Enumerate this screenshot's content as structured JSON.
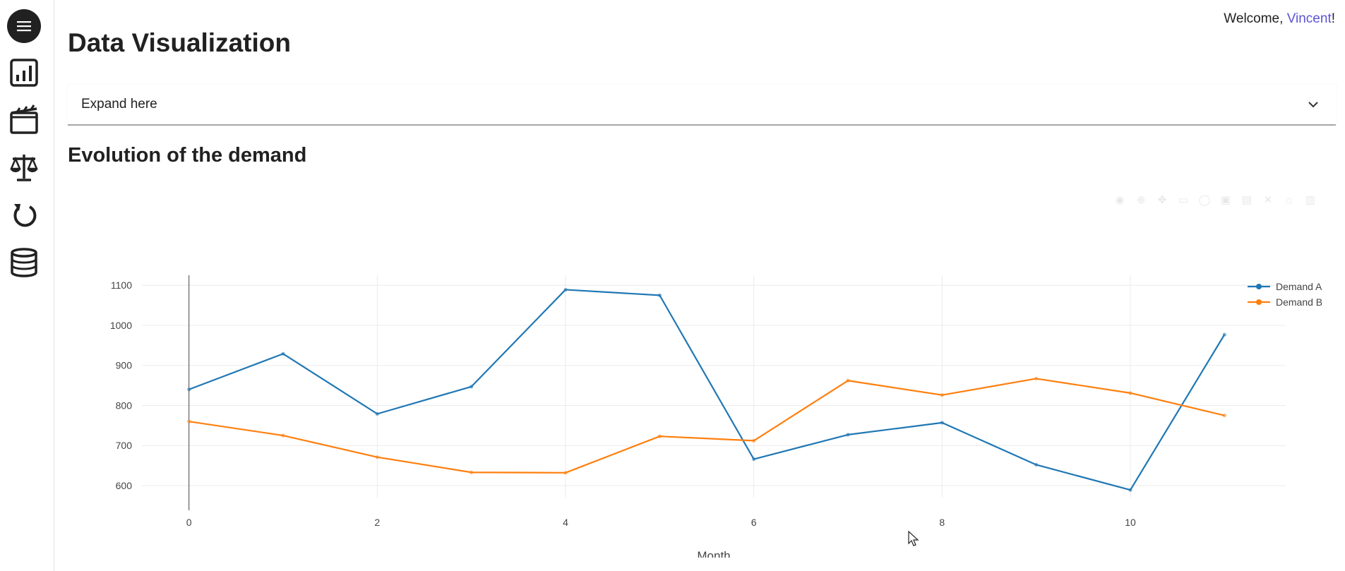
{
  "sidebar": {
    "items": [
      {
        "icon": "menu-icon",
        "name": "sidebar-menu-button"
      },
      {
        "icon": "bar-chart-icon",
        "name": "sidebar-item-charts"
      },
      {
        "icon": "clapperboard-icon",
        "name": "sidebar-item-media"
      },
      {
        "icon": "scale-icon",
        "name": "sidebar-item-balance"
      },
      {
        "icon": "refresh-icon",
        "name": "sidebar-item-refresh"
      },
      {
        "icon": "database-icon",
        "name": "sidebar-item-database"
      }
    ]
  },
  "header": {
    "welcome_prefix": "Welcome, ",
    "username": "Vincent",
    "welcome_suffix": "!"
  },
  "page": {
    "title": "Data Visualization",
    "expander_label": "Expand here",
    "section_title": "Evolution of the demand"
  },
  "colors": {
    "series_a": "#1f77b4",
    "series_b": "#ff7f0e",
    "link": "#5b54d6"
  },
  "chart_data": {
    "type": "line",
    "title": "",
    "xlabel": "Month",
    "ylabel": "",
    "x": [
      0,
      1,
      2,
      3,
      4,
      5,
      6,
      7,
      8,
      9,
      10,
      11
    ],
    "xticks": [
      0,
      2,
      4,
      6,
      8,
      10
    ],
    "yticks": [
      600,
      700,
      800,
      900,
      1000,
      1100
    ],
    "xlim": [
      -0.5,
      11.65
    ],
    "ylim": [
      570,
      1125
    ],
    "grid": true,
    "legend_position": "top-right",
    "series": [
      {
        "name": "Demand A",
        "color": "#1f77b4",
        "values": [
          840,
          929,
          779,
          847,
          1089,
          1075,
          666,
          727,
          757,
          652,
          589,
          977
        ]
      },
      {
        "name": "Demand B",
        "color": "#ff7f0e",
        "values": [
          760,
          725,
          671,
          633,
          632,
          723,
          712,
          862,
          826,
          867,
          831,
          775
        ]
      }
    ]
  }
}
